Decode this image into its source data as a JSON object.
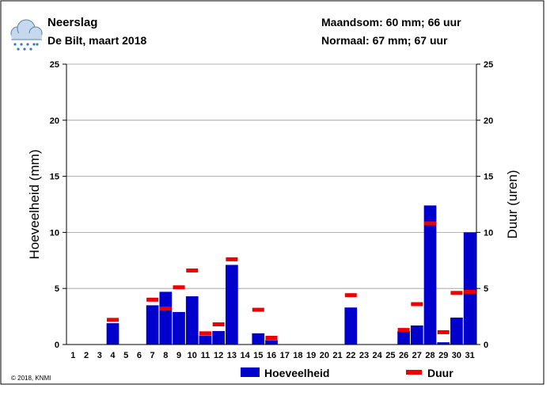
{
  "header": {
    "title": "Neerslag",
    "subtitle": "De Bilt, maart 2018",
    "month_sum": "Maandsom: 60 mm; 66 uur",
    "normal": "Normaal: 67 mm; 67 uur",
    "icon": "rain-cloud-icon"
  },
  "footer": {
    "copyright": "© 2018, KNMI"
  },
  "colors": {
    "bar": "#0000cc",
    "duration": "#ee0000",
    "grid": "#999999",
    "axis": "#000000"
  },
  "chart_data": {
    "type": "bar",
    "title": "",
    "xlabel": "",
    "ylabel": "Hoeveelheid (mm)",
    "ylabel_right": "Duur (uren)",
    "ylim": [
      0,
      25
    ],
    "yticks": [
      0,
      5,
      10,
      15,
      20,
      25
    ],
    "grid": true,
    "legend_position": "bottom",
    "categories": [
      "1",
      "2",
      "3",
      "4",
      "5",
      "6",
      "7",
      "8",
      "9",
      "10",
      "11",
      "12",
      "13",
      "14",
      "15",
      "16",
      "17",
      "18",
      "19",
      "20",
      "21",
      "22",
      "23",
      "24",
      "25",
      "26",
      "27",
      "28",
      "29",
      "30",
      "31"
    ],
    "series": [
      {
        "name": "Hoeveelheid",
        "kind": "bar",
        "values": [
          0,
          0,
          0,
          1.9,
          0,
          0,
          3.5,
          4.7,
          2.9,
          4.3,
          0.8,
          1.2,
          7.1,
          0,
          1.0,
          0.4,
          0,
          0,
          0,
          0,
          0,
          3.3,
          0,
          0,
          0,
          1.2,
          1.7,
          12.4,
          0.2,
          2.4,
          10.0
        ]
      },
      {
        "name": "Duur",
        "kind": "marker",
        "values": [
          null,
          null,
          null,
          2.2,
          null,
          null,
          4.0,
          3.2,
          5.1,
          6.6,
          1.0,
          1.8,
          7.6,
          null,
          3.1,
          0.6,
          null,
          null,
          null,
          null,
          null,
          4.4,
          null,
          null,
          null,
          1.3,
          3.6,
          10.8,
          1.1,
          4.6,
          4.7
        ]
      }
    ]
  }
}
